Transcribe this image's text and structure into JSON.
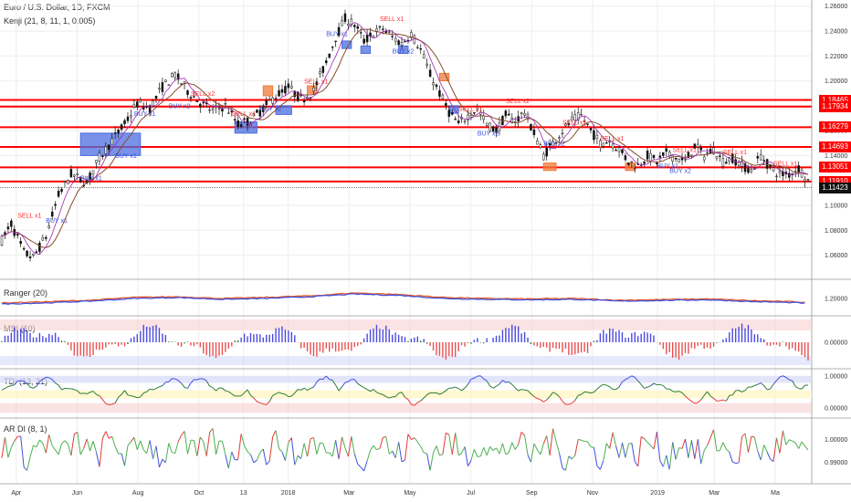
{
  "title": "Euro / U.S. Dollar, 1D, FXCM",
  "indicator": "Kenji (21, 8, 11, 1, 0.005)",
  "colors": {
    "resistance": "#ff0000",
    "up": "#2e7d32",
    "down": "#e53935",
    "blue": "#3f51e0",
    "box_blue": "#4a6ee0",
    "box_orange": "#f07a3a",
    "signal_red": "#ff3030",
    "signal_blue": "#3a4fd8"
  },
  "chart_data": {
    "type": "line",
    "main": {
      "ylim": [
        1.045,
        1.262
      ],
      "y_ticks": [
        "1.26000",
        "1.24000",
        "1.22000",
        "1.20000",
        "1.18000",
        "1.16000",
        "1.14000",
        "1.12000",
        "1.10000",
        "1.08000",
        "1.06000"
      ],
      "y_tick_values": [
        1.26,
        1.24,
        1.22,
        1.2,
        1.18,
        1.16,
        1.14,
        1.12,
        1.1,
        1.08,
        1.06
      ],
      "horizontal_levels": [
        {
          "value": 1.18465,
          "label": "1.18465"
        },
        {
          "value": 1.17934,
          "label": "1.17934"
        },
        {
          "value": 1.16279,
          "label": "1.16279"
        },
        {
          "value": 1.14693,
          "label": "1.14693"
        },
        {
          "value": 1.13051,
          "label": "1.13051"
        },
        {
          "value": 1.1191,
          "label": "1.11910"
        }
      ],
      "last_price": {
        "value": 1.11423,
        "label": "1.11423"
      },
      "price_path": [
        [
          0,
          1.072
        ],
        [
          3,
          1.085
        ],
        [
          7,
          1.062
        ],
        [
          10,
          1.058
        ],
        [
          14,
          1.075
        ],
        [
          18,
          1.108
        ],
        [
          22,
          1.125
        ],
        [
          27,
          1.118
        ],
        [
          31,
          1.138
        ],
        [
          35,
          1.152
        ],
        [
          39,
          1.165
        ],
        [
          43,
          1.182
        ],
        [
          47,
          1.178
        ],
        [
          51,
          1.195
        ],
        [
          55,
          1.205
        ],
        [
          59,
          1.192
        ],
        [
          63,
          1.182
        ],
        [
          67,
          1.176
        ],
        [
          71,
          1.18
        ],
        [
          75,
          1.165
        ],
        [
          79,
          1.168
        ],
        [
          83,
          1.178
        ],
        [
          87,
          1.188
        ],
        [
          91,
          1.195
        ],
        [
          95,
          1.185
        ],
        [
          99,
          1.192
        ],
        [
          103,
          1.215
        ],
        [
          106,
          1.235
        ],
        [
          109,
          1.25
        ],
        [
          112,
          1.245
        ],
        [
          115,
          1.232
        ],
        [
          118,
          1.238
        ],
        [
          121,
          1.242
        ],
        [
          124,
          1.235
        ],
        [
          127,
          1.23
        ],
        [
          130,
          1.238
        ],
        [
          133,
          1.225
        ],
        [
          136,
          1.205
        ],
        [
          139,
          1.19
        ],
        [
          142,
          1.175
        ],
        [
          145,
          1.165
        ],
        [
          148,
          1.172
        ],
        [
          151,
          1.178
        ],
        [
          154,
          1.165
        ],
        [
          157,
          1.16
        ],
        [
          160,
          1.172
        ],
        [
          163,
          1.168
        ],
        [
          166,
          1.175
        ],
        [
          169,
          1.158
        ],
        [
          172,
          1.14
        ],
        [
          175,
          1.15
        ],
        [
          178,
          1.16
        ],
        [
          181,
          1.168
        ],
        [
          184,
          1.172
        ],
        [
          187,
          1.16
        ],
        [
          190,
          1.15
        ],
        [
          193,
          1.152
        ],
        [
          196,
          1.145
        ],
        [
          199,
          1.135
        ],
        [
          202,
          1.132
        ],
        [
          205,
          1.14
        ],
        [
          208,
          1.135
        ],
        [
          211,
          1.142
        ],
        [
          214,
          1.138
        ],
        [
          217,
          1.135
        ],
        [
          220,
          1.148
        ],
        [
          223,
          1.14
        ],
        [
          226,
          1.145
        ],
        [
          229,
          1.135
        ],
        [
          232,
          1.138
        ],
        [
          235,
          1.132
        ],
        [
          238,
          1.128
        ],
        [
          241,
          1.14
        ],
        [
          244,
          1.13
        ],
        [
          247,
          1.125
        ],
        [
          250,
          1.125
        ],
        [
          253,
          1.13
        ],
        [
          256,
          1.12
        ]
      ]
    },
    "ranger": {
      "name": "Ranger (20)",
      "ylim": [
        1.13,
        1.27
      ],
      "y_ticks": [
        "1.20000"
      ],
      "y_tick_values": [
        1.2
      ],
      "series_red": [
        [
          0,
          1.18
        ],
        [
          14,
          1.185
        ],
        [
          28,
          1.192
        ],
        [
          42,
          1.205
        ],
        [
          56,
          1.208
        ],
        [
          70,
          1.2
        ],
        [
          84,
          1.205
        ],
        [
          98,
          1.212
        ],
        [
          112,
          1.225
        ],
        [
          126,
          1.218
        ],
        [
          140,
          1.205
        ],
        [
          154,
          1.2
        ],
        [
          168,
          1.198
        ],
        [
          182,
          1.2
        ],
        [
          196,
          1.192
        ],
        [
          210,
          1.195
        ],
        [
          224,
          1.198
        ],
        [
          238,
          1.19
        ],
        [
          252,
          1.185
        ],
        [
          256,
          1.182
        ]
      ],
      "series_blue": [
        [
          0,
          1.175
        ],
        [
          14,
          1.18
        ],
        [
          28,
          1.188
        ],
        [
          42,
          1.2
        ],
        [
          56,
          1.204
        ],
        [
          70,
          1.196
        ],
        [
          84,
          1.2
        ],
        [
          98,
          1.208
        ],
        [
          112,
          1.22
        ],
        [
          126,
          1.214
        ],
        [
          140,
          1.2
        ],
        [
          154,
          1.196
        ],
        [
          168,
          1.194
        ],
        [
          182,
          1.196
        ],
        [
          196,
          1.188
        ],
        [
          210,
          1.191
        ],
        [
          224,
          1.194
        ],
        [
          238,
          1.186
        ],
        [
          252,
          1.181
        ],
        [
          256,
          1.178
        ]
      ]
    },
    "msi": {
      "name": "MSI (10)",
      "ylim": [
        -1,
        1
      ],
      "y_ticks": [
        "0.00000"
      ],
      "y_tick_values": [
        0
      ]
    },
    "tdi": {
      "name": "TDI (13, 21)",
      "ylim": [
        -0.2,
        1.05
      ],
      "y_ticks": [
        "1.00000",
        "0.00000"
      ],
      "y_tick_values": [
        1,
        0
      ]
    },
    "ardi": {
      "name": "AR DI (8, 1)",
      "ylim": [
        0.982,
        1.008
      ],
      "y_ticks": [
        "1.00000",
        "0.99000"
      ],
      "y_tick_values": [
        1,
        0.99
      ]
    },
    "x_ticks": [
      {
        "label": "Apr",
        "pos": 0.02
      },
      {
        "label": "Jun",
        "pos": 0.095
      },
      {
        "label": "Aug",
        "pos": 0.17
      },
      {
        "label": "Oct",
        "pos": 0.245
      },
      {
        "label": "13",
        "pos": 0.3
      },
      {
        "label": "2018",
        "pos": 0.355
      },
      {
        "label": "Mar",
        "pos": 0.43
      },
      {
        "label": "May",
        "pos": 0.505
      },
      {
        "label": "Jul",
        "pos": 0.58
      },
      {
        "label": "Sep",
        "pos": 0.655
      },
      {
        "label": "Nov",
        "pos": 0.73
      },
      {
        "label": "2019",
        "pos": 0.81
      },
      {
        "label": "Mar",
        "pos": 0.88
      },
      {
        "label": "Ma",
        "pos": 0.955
      }
    ],
    "signal_labels": [
      {
        "text": "SELL x1",
        "t": 5,
        "y": 1.09,
        "color": "red"
      },
      {
        "text": "BUY x1",
        "t": 14,
        "y": 1.086,
        "color": "blue"
      },
      {
        "text": "BUY x1",
        "t": 25,
        "y": 1.12,
        "color": "blue"
      },
      {
        "text": "BUY x1",
        "t": 36,
        "y": 1.138,
        "color": "blue"
      },
      {
        "text": "BUY x1",
        "t": 42,
        "y": 1.172,
        "color": "blue"
      },
      {
        "text": "SELL x2",
        "t": 60,
        "y": 1.188,
        "color": "red"
      },
      {
        "text": "BUY x2",
        "t": 53,
        "y": 1.178,
        "color": "blue"
      },
      {
        "text": "SELL x1",
        "t": 73,
        "y": 1.172,
        "color": "red"
      },
      {
        "text": "BUY x2",
        "t": 82,
        "y": 1.176,
        "color": "blue"
      },
      {
        "text": "SELL x1",
        "t": 96,
        "y": 1.198,
        "color": "red"
      },
      {
        "text": "SELL x1",
        "t": 120,
        "y": 1.248,
        "color": "red"
      },
      {
        "text": "BUY x1",
        "t": 103,
        "y": 1.236,
        "color": "blue"
      },
      {
        "text": "BUY x2",
        "t": 124,
        "y": 1.222,
        "color": "blue"
      },
      {
        "text": "SELL x1",
        "t": 145,
        "y": 1.176,
        "color": "red"
      },
      {
        "text": "SELL x2",
        "t": 160,
        "y": 1.182,
        "color": "red"
      },
      {
        "text": "BUY x2",
        "t": 151,
        "y": 1.156,
        "color": "blue"
      },
      {
        "text": "SELL x1",
        "t": 178,
        "y": 1.165,
        "color": "red"
      },
      {
        "text": "BUY x2",
        "t": 172,
        "y": 1.148,
        "color": "blue"
      },
      {
        "text": "SELL x1",
        "t": 190,
        "y": 1.152,
        "color": "red"
      },
      {
        "text": "BUY x1",
        "t": 208,
        "y": 1.13,
        "color": "blue"
      },
      {
        "text": "SELL x1",
        "t": 213,
        "y": 1.143,
        "color": "red"
      },
      {
        "text": "BUY x2",
        "t": 212,
        "y": 1.126,
        "color": "blue"
      },
      {
        "text": "SELL x1",
        "t": 229,
        "y": 1.141,
        "color": "red"
      },
      {
        "text": "SELL x1",
        "t": 245,
        "y": 1.132,
        "color": "red"
      }
    ],
    "boxes": [
      {
        "t0": 25,
        "t1": 44,
        "y0": 1.14,
        "y1": 1.158,
        "color": "blue"
      },
      {
        "t0": 74,
        "t1": 81,
        "y0": 1.158,
        "y1": 1.167,
        "color": "blue"
      },
      {
        "t0": 83,
        "t1": 86,
        "y0": 1.188,
        "y1": 1.196,
        "color": "orange"
      },
      {
        "t0": 87,
        "t1": 92,
        "y0": 1.173,
        "y1": 1.18,
        "color": "blue"
      },
      {
        "t0": 97,
        "t1": 100,
        "y0": 1.19,
        "y1": 1.196,
        "color": "orange"
      },
      {
        "t0": 108,
        "t1": 111,
        "y0": 1.226,
        "y1": 1.232,
        "color": "blue"
      },
      {
        "t0": 114,
        "t1": 117,
        "y0": 1.222,
        "y1": 1.228,
        "color": "blue"
      },
      {
        "t0": 126,
        "t1": 129,
        "y0": 1.222,
        "y1": 1.228,
        "color": "blue"
      },
      {
        "t0": 139,
        "t1": 142,
        "y0": 1.2,
        "y1": 1.206,
        "color": "orange"
      },
      {
        "t0": 142,
        "t1": 145,
        "y0": 1.174,
        "y1": 1.18,
        "color": "blue"
      },
      {
        "t0": 172,
        "t1": 176,
        "y0": 1.128,
        "y1": 1.134,
        "color": "orange"
      },
      {
        "t0": 198,
        "t1": 201,
        "y0": 1.128,
        "y1": 1.134,
        "color": "orange"
      }
    ]
  }
}
